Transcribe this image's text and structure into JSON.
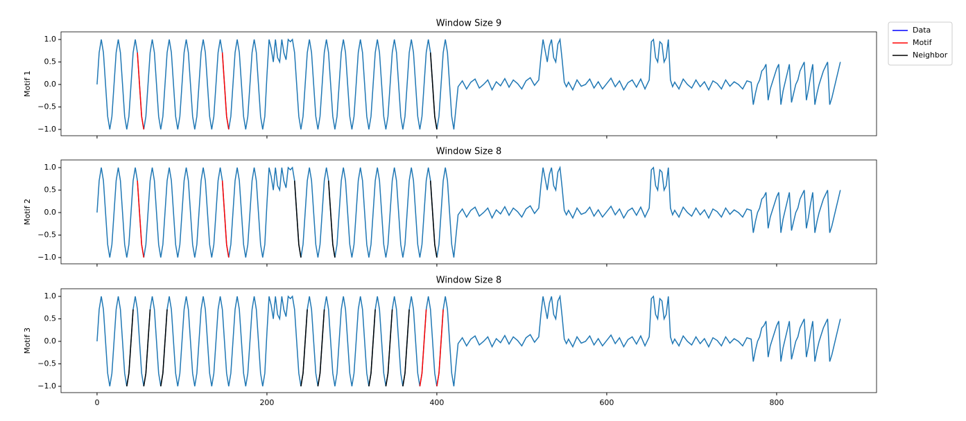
{
  "chart_data": {
    "type": "line",
    "xlim": [
      -42.4,
      917.6
    ],
    "xticks": [
      0,
      200,
      400,
      600,
      800
    ],
    "ylim": [
      -1.14,
      1.17
    ],
    "yticks": [
      {
        "value": -1.0,
        "label": "−1.0"
      },
      {
        "value": -0.5,
        "label": "−0.5"
      },
      {
        "value": 0.0,
        "label": "0.0"
      },
      {
        "value": 0.5,
        "label": "0.5"
      },
      {
        "value": 1.0,
        "label": "1.0"
      }
    ],
    "grid": false,
    "legend": "outside upper right",
    "x": [
      0,
      2.5,
      5,
      7.5,
      10,
      12.5,
      15,
      17.5,
      20,
      22.5,
      25,
      27.5,
      30,
      32.5,
      35,
      37.5,
      40,
      42.5,
      45,
      47.5,
      50,
      52.5,
      55,
      57.5,
      60,
      62.5,
      65,
      67.5,
      70,
      72.5,
      75,
      77.5,
      80,
      82.5,
      85,
      87.5,
      90,
      92.5,
      95,
      97.5,
      100,
      102.5,
      105,
      107.5,
      110,
      112.5,
      115,
      117.5,
      120,
      122.5,
      125,
      127.5,
      130,
      132.5,
      135,
      137.5,
      140,
      142.5,
      145,
      147.5,
      150,
      152.5,
      155,
      157.5,
      160,
      162.5,
      165,
      167.5,
      170,
      172.5,
      175,
      177.5,
      180,
      182.5,
      185,
      187.5,
      190,
      192.5,
      195,
      197.5,
      200,
      202.5,
      205,
      207.5,
      210,
      212.5,
      215,
      217.5,
      220,
      222.5,
      225,
      227.5,
      230,
      232.5,
      235,
      237.5,
      240,
      242.5,
      245,
      247.5,
      250,
      252.5,
      255,
      257.5,
      260,
      262.5,
      265,
      267.5,
      270,
      272.5,
      275,
      277.5,
      280,
      282.5,
      285,
      287.5,
      290,
      292.5,
      295,
      297.5,
      300,
      302.5,
      305,
      307.5,
      310,
      312.5,
      315,
      317.5,
      320,
      322.5,
      325,
      327.5,
      330,
      332.5,
      335,
      337.5,
      340,
      342.5,
      345,
      347.5,
      350,
      352.5,
      355,
      357.5,
      360,
      362.5,
      365,
      367.5,
      370,
      372.5,
      375,
      377.5,
      380,
      382.5,
      385,
      387.5,
      390,
      392.5,
      395,
      397.5,
      400,
      402.5,
      405,
      407.5,
      410,
      412.5,
      415,
      417.5,
      420,
      425,
      430,
      435,
      440,
      445,
      450,
      455,
      460,
      465,
      470,
      475,
      480,
      485,
      490,
      495,
      500,
      505,
      510,
      515,
      520,
      522.5,
      525,
      527.5,
      530,
      532.5,
      535,
      537.5,
      540,
      542.5,
      545,
      547.5,
      550,
      552.5,
      555,
      560,
      565,
      570,
      575,
      580,
      585,
      590,
      595,
      600,
      605,
      610,
      615,
      620,
      625,
      630,
      635,
      640,
      645,
      650,
      652.5,
      655,
      657.5,
      660,
      662.5,
      665,
      667.5,
      670,
      672.5,
      675,
      677.5,
      680,
      685,
      690,
      695,
      700,
      705,
      710,
      715,
      720,
      725,
      730,
      735,
      740,
      745,
      750,
      755,
      760,
      765,
      770,
      772.5,
      775,
      777.5,
      780,
      782.5,
      785,
      787.5,
      790,
      792.5,
      795,
      797.5,
      800,
      802.5,
      805,
      807.5,
      810,
      812.5,
      815,
      817.5,
      820,
      822.5,
      825,
      827.5,
      830,
      832.5,
      835,
      837.5,
      840,
      842.5,
      845,
      847.5,
      850,
      852.5,
      855,
      857.5,
      860,
      862.5,
      865,
      867.5,
      870,
      872.5,
      875
    ],
    "series": [
      {
        "name": "Data",
        "color": "#1f77b4",
        "legend_color": "#0000ff",
        "values": [
          0,
          0.71,
          1,
          0.71,
          0,
          -0.71,
          -1,
          -0.71,
          0,
          0.71,
          1,
          0.71,
          0,
          -0.71,
          -1,
          -0.71,
          0,
          0.71,
          1,
          0.71,
          0,
          -0.71,
          -1,
          -0.71,
          0,
          0.71,
          1,
          0.71,
          0,
          -0.71,
          -1,
          -0.71,
          0,
          0.71,
          1,
          0.71,
          0,
          -0.71,
          -1,
          -0.71,
          0,
          0.71,
          1,
          0.71,
          0,
          -0.71,
          -1,
          -0.71,
          0,
          0.71,
          1,
          0.71,
          0,
          -0.71,
          -1,
          -0.71,
          0,
          0.71,
          1,
          0.71,
          0,
          -0.71,
          -1,
          -0.71,
          0,
          0.71,
          1,
          0.71,
          0,
          -0.71,
          -1,
          -0.71,
          0,
          0.71,
          1,
          0.71,
          0,
          -0.71,
          -1,
          -0.71,
          0.2,
          1.0,
          0.8,
          0.5,
          1.0,
          0.6,
          0.5,
          1.0,
          0.7,
          0.55,
          1.0,
          0.95,
          1,
          0.71,
          0,
          -0.71,
          -1,
          -0.71,
          0,
          0.71,
          1,
          0.71,
          0,
          -0.71,
          -1,
          -0.71,
          0,
          0.71,
          1,
          0.71,
          0,
          -0.71,
          -1,
          -0.71,
          0,
          0.71,
          1,
          0.71,
          0,
          -0.71,
          -1,
          -0.71,
          0,
          0.71,
          1,
          0.71,
          0,
          -0.71,
          -1,
          -0.71,
          0,
          0.71,
          1,
          0.71,
          0,
          -0.71,
          -1,
          -0.71,
          0,
          0.71,
          1,
          0.71,
          0,
          -0.71,
          -1,
          -0.71,
          0,
          0.71,
          1,
          0.71,
          0,
          -0.71,
          -1,
          -0.71,
          0,
          0.71,
          1,
          0.71,
          0,
          -0.71,
          -1,
          -0.71,
          0,
          0.71,
          1,
          0.71,
          0,
          -0.71,
          -1,
          -0.05,
          0.08,
          -0.1,
          0.05,
          0.12,
          -0.08,
          0.0,
          0.1,
          -0.12,
          0.06,
          -0.03,
          0.13,
          -0.06,
          0.1,
          0.02,
          -0.1,
          0.08,
          0.15,
          -0.02,
          0.1,
          0.6,
          1.0,
          0.75,
          0.5,
          0.85,
          1.0,
          0.6,
          0.5,
          0.9,
          1.0,
          0.55,
          0.05,
          -0.05,
          0.05,
          -0.12,
          0.1,
          -0.04,
          0.0,
          0.12,
          -0.08,
          0.06,
          -0.1,
          0.02,
          0.14,
          -0.05,
          0.08,
          -0.12,
          0.04,
          0.1,
          -0.06,
          0.12,
          -0.1,
          0.1,
          0.95,
          1.0,
          0.6,
          0.5,
          0.95,
          0.9,
          0.5,
          0.6,
          1.0,
          0.1,
          -0.05,
          0.05,
          -0.1,
          0.12,
          0.0,
          -0.08,
          0.1,
          -0.05,
          0.06,
          -0.12,
          0.08,
          0.02,
          -0.1,
          0.1,
          -0.04,
          0.06,
          0.0,
          -0.1,
          0.08,
          0.05,
          -0.45,
          -0.2,
          0.0,
          0.1,
          0.3,
          0.35,
          0.45,
          -0.35,
          -0.1,
          0.05,
          0.2,
          0.35,
          0.45,
          -0.45,
          -0.15,
          0.05,
          0.25,
          0.45,
          -0.4,
          -0.2,
          0.0,
          0.1,
          0.3,
          0.4,
          0.5,
          -0.35,
          -0.1,
          0.2,
          0.45,
          -0.45,
          -0.2,
          0.0,
          0.15,
          0.3,
          0.4,
          0.5,
          -0.45,
          -0.3,
          -0.1,
          0.1,
          0.3,
          0.5
        ]
      },
      {
        "name": "Motif",
        "color": "#ff0000"
      },
      {
        "name": "Neighbor",
        "color": "#000000"
      }
    ],
    "panels": [
      {
        "title": "Window Size 9",
        "ylabel": "Motif 1",
        "motif": [
          {
            "x": [
              47.5,
              50,
              52.5,
              55
            ],
            "values": [
              0.71,
              0,
              -0.71,
              -1
            ]
          },
          {
            "x": [
              147.5,
              150,
              152.5,
              155
            ],
            "values": [
              0.71,
              0,
              -0.71,
              -1
            ]
          }
        ],
        "neighbor": [
          {
            "x": [
              392.5,
              395,
              397.5,
              400
            ],
            "values": [
              0.71,
              0,
              -0.71,
              -1
            ]
          }
        ]
      },
      {
        "title": "Window Size 8",
        "ylabel": "Motif 2",
        "motif": [
          {
            "x": [
              47.5,
              50,
              52.5,
              55
            ],
            "values": [
              0.71,
              0,
              -0.71,
              -1
            ]
          },
          {
            "x": [
              147.5,
              150,
              152.5,
              155
            ],
            "values": [
              0.71,
              0,
              -0.71,
              -1
            ]
          }
        ],
        "neighbor": [
          {
            "x": [
              232.5,
              235,
              237.5,
              240
            ],
            "values": [
              0.71,
              0,
              -0.71,
              -1
            ]
          },
          {
            "x": [
              272.5,
              275,
              277.5,
              280
            ],
            "values": [
              0.71,
              0,
              -0.71,
              -1
            ]
          },
          {
            "x": [
              392.5,
              395,
              397.5,
              400
            ],
            "values": [
              0.71,
              0,
              -0.71,
              -1
            ]
          }
        ]
      },
      {
        "title": "Window Size 8",
        "ylabel": "Motif 3",
        "motif": [
          {
            "x": [
              380,
              382.5,
              385,
              387.5
            ],
            "values": [
              -1,
              -0.71,
              0,
              0.71
            ]
          },
          {
            "x": [
              400,
              402.5,
              405,
              407.5
            ],
            "values": [
              -1,
              -0.71,
              0,
              0.71
            ]
          }
        ],
        "neighbor": [
          {
            "x": [
              35,
              37.5,
              40,
              42.5
            ],
            "values": [
              -1,
              -0.71,
              0,
              0.71
            ]
          },
          {
            "x": [
              55,
              57.5,
              60,
              62.5
            ],
            "values": [
              -1,
              -0.71,
              0,
              0.71
            ]
          },
          {
            "x": [
              75,
              77.5,
              80,
              82.5
            ],
            "values": [
              -1,
              -0.71,
              0,
              0.71
            ]
          },
          {
            "x": [
              240,
              242.5,
              245,
              247.5
            ],
            "values": [
              -1,
              -0.71,
              0,
              0.71
            ]
          },
          {
            "x": [
              260,
              262.5,
              265,
              267.5
            ],
            "values": [
              -1,
              -0.71,
              0,
              0.71
            ]
          },
          {
            "x": [
              320,
              322.5,
              325,
              327.5
            ],
            "values": [
              -1,
              -0.71,
              0,
              0.71
            ]
          },
          {
            "x": [
              340,
              342.5,
              345,
              347.5
            ],
            "values": [
              -1,
              -0.71,
              0,
              0.71
            ]
          },
          {
            "x": [
              360,
              362.5,
              365,
              367.5
            ],
            "values": [
              -1,
              -0.71,
              0,
              0.71
            ]
          }
        ]
      }
    ]
  }
}
